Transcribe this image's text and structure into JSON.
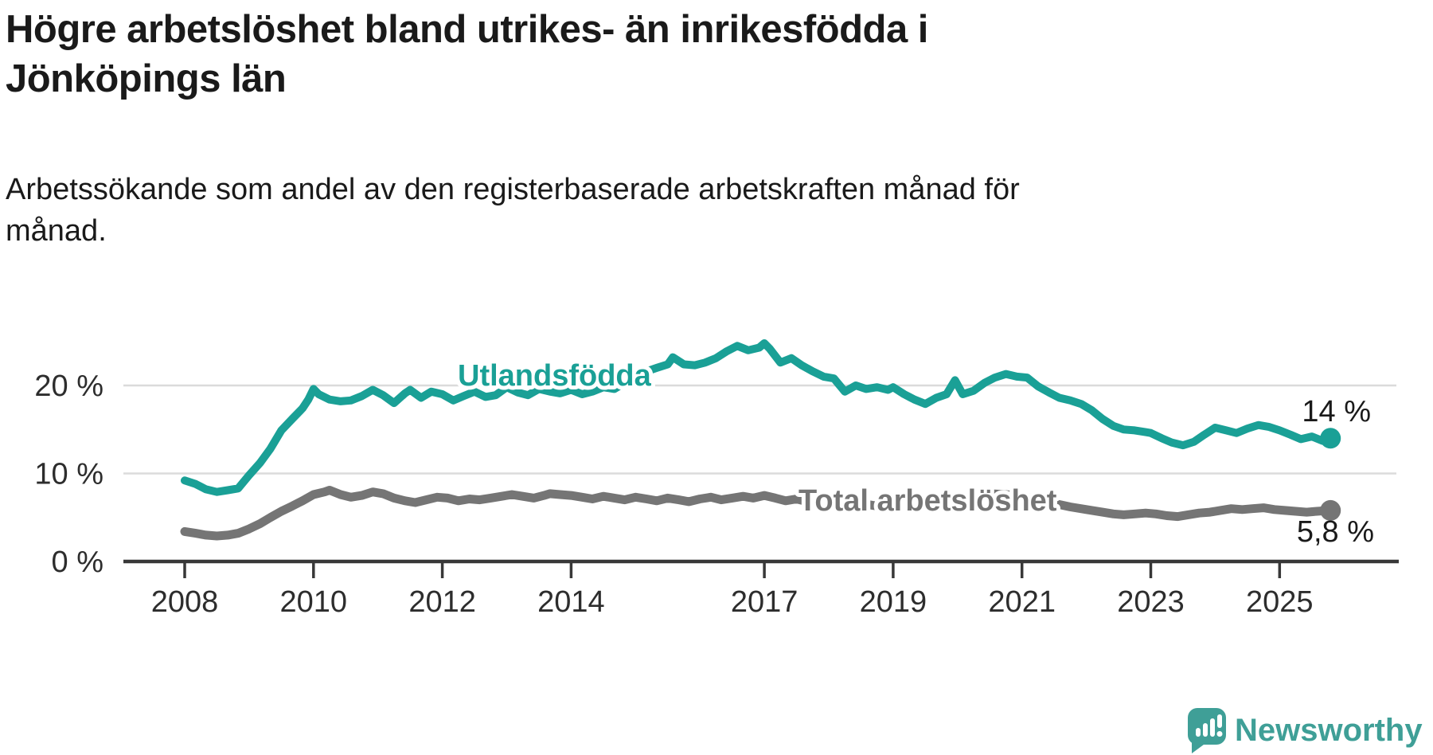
{
  "header": {
    "title_lines": [
      "Högre arbetslöshet bland utrikes- än inrikesfödda i",
      "Jönköpings län"
    ],
    "subtitle_lines": [
      "Arbetssökande som andel av den registerbaserade arbetskraften månad för",
      "månad."
    ]
  },
  "chart_data": {
    "type": "line",
    "title": "Högre arbetslöshet bland utrikes- än inrikesfödda i Jönköpings län",
    "subtitle": "Arbetssökande som andel av den registerbaserade arbetskraften månad för månad.",
    "x_unit": "decimal_year",
    "y_unit": "percent",
    "xlim": [
      2007.05,
      2026.8
    ],
    "ylim": [
      0,
      26
    ],
    "grid": "horizontal",
    "x_ticks": [
      {
        "value": 2008,
        "label": "2008"
      },
      {
        "value": 2010,
        "label": "2010"
      },
      {
        "value": 2012,
        "label": "2012"
      },
      {
        "value": 2014,
        "label": "2014"
      },
      {
        "value": 2017,
        "label": "2017"
      },
      {
        "value": 2019,
        "label": "2019"
      },
      {
        "value": 2021,
        "label": "2021"
      },
      {
        "value": 2023,
        "label": "2023"
      },
      {
        "value": 2025,
        "label": "2025"
      }
    ],
    "y_ticks": [
      {
        "value": 20,
        "label": "20 %",
        "grid": true
      },
      {
        "value": 10,
        "label": "10 %",
        "grid": true
      },
      {
        "value": 0,
        "label": "0 %",
        "grid": false
      }
    ],
    "series": [
      {
        "name": "Utlandsfödda",
        "color": "#1aa096",
        "end_label": "14 %",
        "end_value": 14.0,
        "points": [
          [
            2008.0,
            9.2
          ],
          [
            2008.17,
            8.8
          ],
          [
            2008.33,
            8.2
          ],
          [
            2008.5,
            7.9
          ],
          [
            2008.67,
            8.1
          ],
          [
            2008.83,
            8.3
          ],
          [
            2009.0,
            9.8
          ],
          [
            2009.17,
            11.2
          ],
          [
            2009.33,
            12.8
          ],
          [
            2009.5,
            14.9
          ],
          [
            2009.67,
            16.2
          ],
          [
            2009.83,
            17.4
          ],
          [
            2009.92,
            18.4
          ],
          [
            2010.0,
            19.6
          ],
          [
            2010.08,
            19.0
          ],
          [
            2010.25,
            18.4
          ],
          [
            2010.42,
            18.2
          ],
          [
            2010.58,
            18.3
          ],
          [
            2010.75,
            18.8
          ],
          [
            2010.92,
            19.5
          ],
          [
            2011.08,
            18.9
          ],
          [
            2011.25,
            18.0
          ],
          [
            2011.42,
            19.1
          ],
          [
            2011.5,
            19.5
          ],
          [
            2011.67,
            18.6
          ],
          [
            2011.83,
            19.3
          ],
          [
            2012.0,
            19.0
          ],
          [
            2012.17,
            18.3
          ],
          [
            2012.33,
            18.8
          ],
          [
            2012.5,
            19.3
          ],
          [
            2012.67,
            18.7
          ],
          [
            2012.83,
            18.9
          ],
          [
            2013.0,
            19.8
          ],
          [
            2013.17,
            19.2
          ],
          [
            2013.33,
            18.9
          ],
          [
            2013.5,
            19.6
          ],
          [
            2013.67,
            19.3
          ],
          [
            2013.83,
            19.1
          ],
          [
            2014.0,
            19.5
          ],
          [
            2014.17,
            19.0
          ],
          [
            2014.33,
            19.3
          ],
          [
            2014.5,
            19.8
          ],
          [
            2014.67,
            19.6
          ],
          [
            2014.83,
            20.3
          ],
          [
            2015.0,
            21.0
          ],
          [
            2015.17,
            21.6
          ],
          [
            2015.33,
            22.0
          ],
          [
            2015.5,
            22.4
          ],
          [
            2015.58,
            23.2
          ],
          [
            2015.75,
            22.4
          ],
          [
            2015.92,
            22.3
          ],
          [
            2016.08,
            22.6
          ],
          [
            2016.25,
            23.1
          ],
          [
            2016.42,
            23.9
          ],
          [
            2016.58,
            24.5
          ],
          [
            2016.75,
            24.0
          ],
          [
            2016.92,
            24.3
          ],
          [
            2017.0,
            24.8
          ],
          [
            2017.08,
            24.2
          ],
          [
            2017.25,
            22.6
          ],
          [
            2017.42,
            23.1
          ],
          [
            2017.58,
            22.3
          ],
          [
            2017.75,
            21.6
          ],
          [
            2017.92,
            21.0
          ],
          [
            2018.08,
            20.8
          ],
          [
            2018.25,
            19.3
          ],
          [
            2018.42,
            20.0
          ],
          [
            2018.58,
            19.6
          ],
          [
            2018.75,
            19.8
          ],
          [
            2018.92,
            19.5
          ],
          [
            2019.0,
            19.8
          ],
          [
            2019.17,
            19.0
          ],
          [
            2019.33,
            18.4
          ],
          [
            2019.5,
            17.9
          ],
          [
            2019.67,
            18.6
          ],
          [
            2019.83,
            19.0
          ],
          [
            2019.96,
            20.6
          ],
          [
            2020.08,
            19.0
          ],
          [
            2020.25,
            19.4
          ],
          [
            2020.42,
            20.3
          ],
          [
            2020.58,
            20.9
          ],
          [
            2020.75,
            21.3
          ],
          [
            2020.92,
            21.0
          ],
          [
            2021.08,
            20.9
          ],
          [
            2021.25,
            19.9
          ],
          [
            2021.42,
            19.2
          ],
          [
            2021.58,
            18.6
          ],
          [
            2021.75,
            18.3
          ],
          [
            2021.92,
            17.9
          ],
          [
            2022.08,
            17.2
          ],
          [
            2022.25,
            16.2
          ],
          [
            2022.42,
            15.4
          ],
          [
            2022.58,
            15.0
          ],
          [
            2022.75,
            14.9
          ],
          [
            2022.92,
            14.7
          ],
          [
            2023.0,
            14.6
          ],
          [
            2023.17,
            14.0
          ],
          [
            2023.33,
            13.5
          ],
          [
            2023.5,
            13.2
          ],
          [
            2023.67,
            13.6
          ],
          [
            2023.83,
            14.4
          ],
          [
            2024.0,
            15.2
          ],
          [
            2024.17,
            14.9
          ],
          [
            2024.33,
            14.6
          ],
          [
            2024.5,
            15.1
          ],
          [
            2024.67,
            15.5
          ],
          [
            2024.83,
            15.3
          ],
          [
            2025.0,
            14.9
          ],
          [
            2025.17,
            14.4
          ],
          [
            2025.33,
            13.9
          ],
          [
            2025.5,
            14.2
          ],
          [
            2025.67,
            13.7
          ],
          [
            2025.79,
            14.0
          ]
        ]
      },
      {
        "name": "Total arbetslöshet",
        "color": "#757575",
        "end_label": "5,8 %",
        "end_value": 5.8,
        "points": [
          [
            2008.0,
            3.4
          ],
          [
            2008.17,
            3.2
          ],
          [
            2008.33,
            3.0
          ],
          [
            2008.5,
            2.9
          ],
          [
            2008.67,
            3.0
          ],
          [
            2008.83,
            3.2
          ],
          [
            2009.0,
            3.7
          ],
          [
            2009.17,
            4.3
          ],
          [
            2009.33,
            5.0
          ],
          [
            2009.5,
            5.7
          ],
          [
            2009.67,
            6.3
          ],
          [
            2009.83,
            6.9
          ],
          [
            2010.0,
            7.6
          ],
          [
            2010.17,
            7.9
          ],
          [
            2010.25,
            8.1
          ],
          [
            2010.42,
            7.6
          ],
          [
            2010.58,
            7.3
          ],
          [
            2010.75,
            7.5
          ],
          [
            2010.92,
            7.9
          ],
          [
            2011.08,
            7.7
          ],
          [
            2011.25,
            7.2
          ],
          [
            2011.42,
            6.9
          ],
          [
            2011.58,
            6.7
          ],
          [
            2011.75,
            7.0
          ],
          [
            2011.92,
            7.3
          ],
          [
            2012.08,
            7.2
          ],
          [
            2012.25,
            6.9
          ],
          [
            2012.42,
            7.1
          ],
          [
            2012.58,
            7.0
          ],
          [
            2012.75,
            7.2
          ],
          [
            2012.92,
            7.4
          ],
          [
            2013.08,
            7.6
          ],
          [
            2013.25,
            7.4
          ],
          [
            2013.42,
            7.2
          ],
          [
            2013.58,
            7.5
          ],
          [
            2013.67,
            7.7
          ],
          [
            2013.83,
            7.6
          ],
          [
            2014.0,
            7.5
          ],
          [
            2014.17,
            7.3
          ],
          [
            2014.33,
            7.1
          ],
          [
            2014.5,
            7.4
          ],
          [
            2014.67,
            7.2
          ],
          [
            2014.83,
            7.0
          ],
          [
            2015.0,
            7.3
          ],
          [
            2015.17,
            7.1
          ],
          [
            2015.33,
            6.9
          ],
          [
            2015.5,
            7.2
          ],
          [
            2015.67,
            7.0
          ],
          [
            2015.83,
            6.8
          ],
          [
            2016.0,
            7.1
          ],
          [
            2016.17,
            7.3
          ],
          [
            2016.33,
            7.0
          ],
          [
            2016.5,
            7.2
          ],
          [
            2016.67,
            7.4
          ],
          [
            2016.83,
            7.2
          ],
          [
            2017.0,
            7.5
          ],
          [
            2017.17,
            7.2
          ],
          [
            2017.33,
            6.9
          ],
          [
            2017.5,
            7.1
          ],
          [
            2017.67,
            6.8
          ],
          [
            2017.83,
            6.6
          ],
          [
            2018.0,
            6.8
          ],
          [
            2018.25,
            6.4
          ],
          [
            2018.5,
            6.6
          ],
          [
            2018.75,
            6.3
          ],
          [
            2019.0,
            6.4
          ],
          [
            2019.25,
            6.1
          ],
          [
            2019.5,
            6.3
          ],
          [
            2019.75,
            6.5
          ],
          [
            2020.0,
            6.8
          ],
          [
            2020.25,
            7.2
          ],
          [
            2020.5,
            7.7
          ],
          [
            2020.75,
            7.6
          ],
          [
            2021.0,
            7.4
          ],
          [
            2021.25,
            7.0
          ],
          [
            2021.5,
            6.6
          ],
          [
            2021.75,
            6.2
          ],
          [
            2022.0,
            5.9
          ],
          [
            2022.25,
            5.6
          ],
          [
            2022.42,
            5.4
          ],
          [
            2022.58,
            5.3
          ],
          [
            2022.75,
            5.4
          ],
          [
            2022.92,
            5.5
          ],
          [
            2023.08,
            5.4
          ],
          [
            2023.25,
            5.2
          ],
          [
            2023.42,
            5.1
          ],
          [
            2023.58,
            5.3
          ],
          [
            2023.75,
            5.5
          ],
          [
            2023.92,
            5.6
          ],
          [
            2024.08,
            5.8
          ],
          [
            2024.25,
            6.0
          ],
          [
            2024.42,
            5.9
          ],
          [
            2024.58,
            6.0
          ],
          [
            2024.75,
            6.1
          ],
          [
            2024.92,
            5.9
          ],
          [
            2025.08,
            5.8
          ],
          [
            2025.25,
            5.7
          ],
          [
            2025.42,
            5.6
          ],
          [
            2025.58,
            5.7
          ],
          [
            2025.79,
            5.8
          ]
        ]
      }
    ],
    "legend_position": "inline-labels"
  },
  "branding": {
    "logo_text": "Newsworthy",
    "logo_color": "#3f9f97",
    "logo_icon": "newsworthy-speech-bubble-chart-icon"
  }
}
